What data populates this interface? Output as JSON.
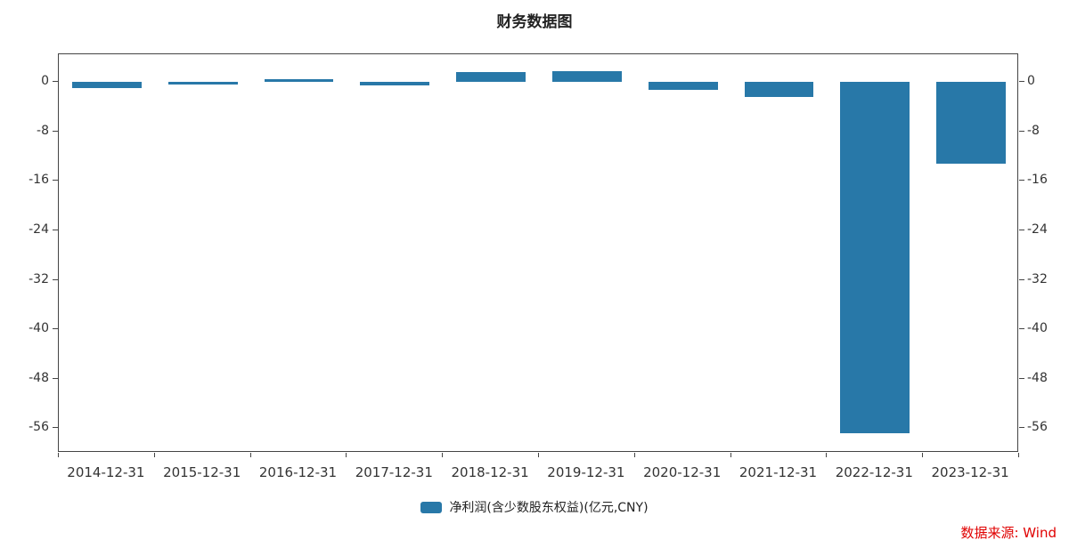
{
  "title": "财务数据图",
  "source": "数据来源: Wind",
  "legend": {
    "label": "净利润(含少数股东权益)(亿元,CNY)"
  },
  "colors": {
    "bar": "#2878a8",
    "axis": "#444444",
    "text": "#333333",
    "source": "#e00000"
  },
  "chart_data": {
    "type": "bar",
    "title": "财务数据图",
    "categories": [
      "2014-12-31",
      "2015-12-31",
      "2016-12-31",
      "2017-12-31",
      "2018-12-31",
      "2019-12-31",
      "2020-12-31",
      "2021-12-31",
      "2022-12-31",
      "2023-12-31"
    ],
    "series": [
      {
        "name": "净利润(含少数股东权益)(亿元,CNY)",
        "values": [
          -0.9,
          -0.4,
          0.5,
          -0.6,
          1.6,
          1.7,
          -1.3,
          -2.4,
          -56.8,
          -13.2
        ]
      }
    ],
    "xlabel": "",
    "ylabel": "",
    "ylim": [
      -60,
      4.5
    ],
    "y_ticks": [
      0,
      -8,
      -16,
      -24,
      -32,
      -40,
      -48,
      -56
    ],
    "grid": false,
    "legend_position": "bottom",
    "source": "数据来源: Wind"
  }
}
